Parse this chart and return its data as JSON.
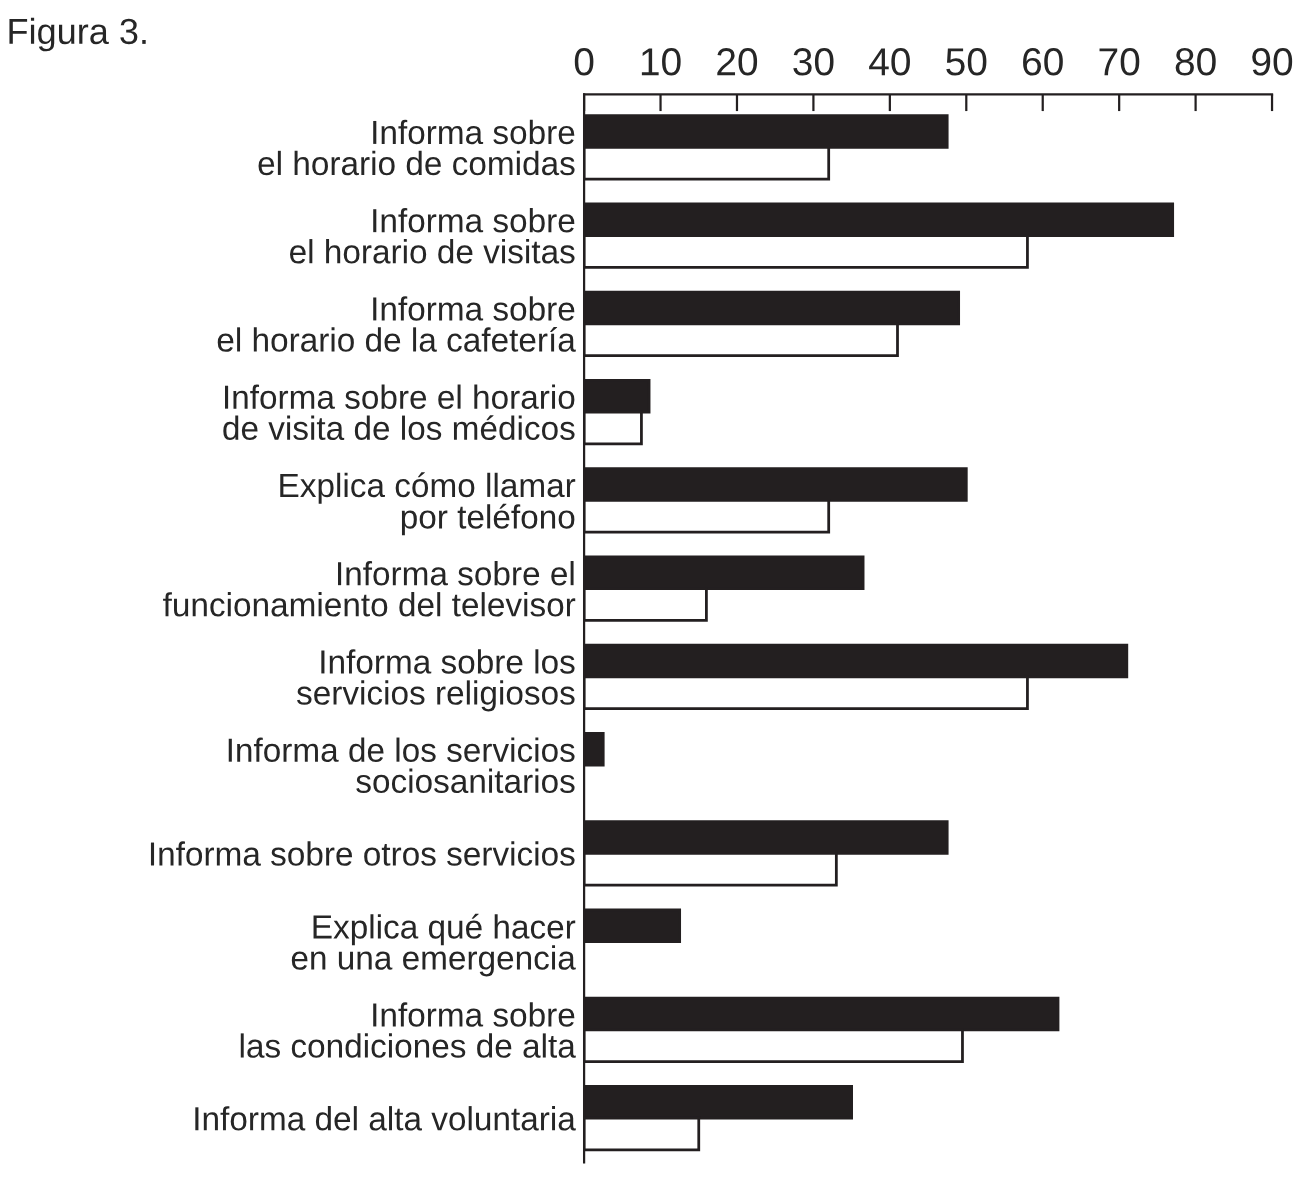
{
  "chart_data": {
    "type": "bar",
    "orientation": "horizontal",
    "title": "Figura 3.",
    "categories": [
      "Informa sobre\nel horario de comidas",
      "Informa sobre\nel horario de visitas",
      "Informa sobre\nel horario de la cafetería",
      "Informa sobre el horario\nde visita de los médicos",
      "Explica cómo llamar\npor teléfono",
      "Informa sobre el\nfuncionamiento del televisor",
      "Informa sobre los\nservicios religiosos",
      "Informa de los servicios\nsociosanitarios",
      "Informa sobre otros servicios",
      "Explica qué hacer\nen una emergencia",
      "Informa sobre\nlas condiciones de alta",
      "Informa del alta voluntaria"
    ],
    "series": [
      {
        "color": "#231f20",
        "values": [
          47.5,
          77,
          49,
          8.5,
          50,
          36.5,
          71,
          2.5,
          47.5,
          12.5,
          62,
          35
        ]
      },
      {
        "color": "#ffffff",
        "values": [
          32,
          58,
          41,
          7.5,
          32,
          16,
          58,
          null,
          33,
          null,
          49.5,
          15
        ]
      }
    ],
    "xlim": [
      0,
      90
    ],
    "xticks": [
      0,
      10,
      20,
      30,
      40,
      50,
      60,
      70,
      80,
      90
    ],
    "grid": false,
    "legend": false
  }
}
